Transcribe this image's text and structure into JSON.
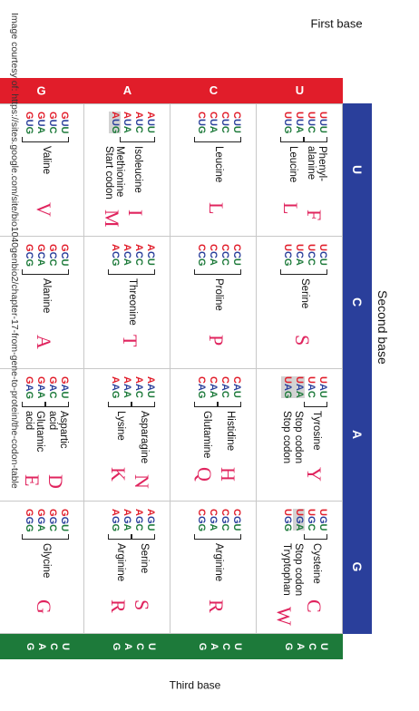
{
  "labels": {
    "first_base": "First base",
    "second_base": "Second base",
    "third_base": "Third base",
    "credit": "Image courtesy of: https://sites.google.com/site/bio1040genbio2/chapter-17-from-gene-to-protein/the-codon-table"
  },
  "second_base_letters": [
    "U",
    "C",
    "A",
    "G"
  ],
  "first_base_letters": [
    "U",
    "C",
    "A",
    "G"
  ],
  "third_base_letters": [
    "U",
    "C",
    "A",
    "G"
  ],
  "colors": {
    "first_base": "#e11d2a",
    "second_base": "#2a3f9b",
    "third_base": "#1d7a3a",
    "amino_letter": "#e0245e"
  },
  "cells": [
    [
      {
        "codons": [
          "UUU",
          "UUC",
          "UUA",
          "UUG"
        ],
        "groups": [
          {
            "name": "Phenyl-\nalanine",
            "rows": [
              0,
              1
            ],
            "letter": "F"
          },
          {
            "name": "Leucine",
            "rows": [
              2,
              3
            ],
            "letter": "L"
          }
        ]
      },
      {
        "codons": [
          "UCU",
          "UCC",
          "UCA",
          "UCG"
        ],
        "groups": [
          {
            "name": "Serine",
            "rows": [
              0,
              3
            ],
            "letter": "S"
          }
        ]
      },
      {
        "codons": [
          "UAU",
          "UAC",
          "UAA",
          "UAG"
        ],
        "highlight": [
          2,
          3
        ],
        "groups": [
          {
            "name": "Tyrosine",
            "rows": [
              0,
              1
            ],
            "letter": "Y"
          },
          {
            "name": "Stop codon",
            "rows": [
              2,
              2
            ],
            "letter": ""
          },
          {
            "name": "Stop codon",
            "rows": [
              3,
              3
            ],
            "letter": ""
          }
        ]
      },
      {
        "codons": [
          "UGU",
          "UGC",
          "UGA",
          "UGG"
        ],
        "highlight": [
          2
        ],
        "groups": [
          {
            "name": "Cysteine",
            "rows": [
              0,
              1
            ],
            "letter": "C"
          },
          {
            "name": "Stop codon",
            "rows": [
              2,
              2
            ],
            "letter": ""
          },
          {
            "name": "Tryptophan",
            "rows": [
              3,
              3
            ],
            "letter": "W"
          }
        ]
      }
    ],
    [
      {
        "codons": [
          "CUU",
          "CUC",
          "CUA",
          "CUG"
        ],
        "groups": [
          {
            "name": "Leucine",
            "rows": [
              0,
              3
            ],
            "letter": "L"
          }
        ]
      },
      {
        "codons": [
          "CCU",
          "CCC",
          "CCA",
          "CCG"
        ],
        "groups": [
          {
            "name": "Proline",
            "rows": [
              0,
              3
            ],
            "letter": "P"
          }
        ]
      },
      {
        "codons": [
          "CAU",
          "CAC",
          "CAA",
          "CAG"
        ],
        "groups": [
          {
            "name": "Histidine",
            "rows": [
              0,
              1
            ],
            "letter": "H"
          },
          {
            "name": "Glutamine",
            "rows": [
              2,
              3
            ],
            "letter": "Q"
          }
        ]
      },
      {
        "codons": [
          "CGU",
          "CGC",
          "CGA",
          "CGG"
        ],
        "groups": [
          {
            "name": "Arginine",
            "rows": [
              0,
              3
            ],
            "letter": "R"
          }
        ]
      }
    ],
    [
      {
        "codons": [
          "AUU",
          "AUC",
          "AUA",
          "AUG"
        ],
        "highlight": [
          3
        ],
        "groups": [
          {
            "name": "Isoleucine",
            "rows": [
              0,
              2
            ],
            "letter": "I"
          },
          {
            "name": "Methionine\nStart codon",
            "rows": [
              3,
              3
            ],
            "letter": "M"
          }
        ]
      },
      {
        "codons": [
          "ACU",
          "ACC",
          "ACA",
          "ACG"
        ],
        "groups": [
          {
            "name": "Threonine",
            "rows": [
              0,
              3
            ],
            "letter": "T"
          }
        ]
      },
      {
        "codons": [
          "AAU",
          "AAC",
          "AAA",
          "AAG"
        ],
        "groups": [
          {
            "name": "Asparagine",
            "rows": [
              0,
              1
            ],
            "letter": "N"
          },
          {
            "name": "Lysine",
            "rows": [
              2,
              3
            ],
            "letter": "K"
          }
        ]
      },
      {
        "codons": [
          "AGU",
          "AGC",
          "AGA",
          "AGG"
        ],
        "groups": [
          {
            "name": "Serine",
            "rows": [
              0,
              1
            ],
            "letter": "S"
          },
          {
            "name": "Arginine",
            "rows": [
              2,
              3
            ],
            "letter": "R"
          }
        ]
      }
    ],
    [
      {
        "codons": [
          "GUU",
          "GUC",
          "GUA",
          "GUG"
        ],
        "groups": [
          {
            "name": "Valine",
            "rows": [
              0,
              3
            ],
            "letter": "V"
          }
        ]
      },
      {
        "codons": [
          "GCU",
          "GCC",
          "GCA",
          "GCG"
        ],
        "groups": [
          {
            "name": "Alanine",
            "rows": [
              0,
              3
            ],
            "letter": "A"
          }
        ]
      },
      {
        "codons": [
          "GAU",
          "GAC",
          "GAA",
          "GAG"
        ],
        "groups": [
          {
            "name": "Aspartic\nacid",
            "rows": [
              0,
              1
            ],
            "letter": "D"
          },
          {
            "name": "Glutamic\nacid",
            "rows": [
              2,
              3
            ],
            "letter": "E"
          }
        ]
      },
      {
        "codons": [
          "GGU",
          "GGC",
          "GGA",
          "GGG"
        ],
        "groups": [
          {
            "name": "Glycine",
            "rows": [
              0,
              3
            ],
            "letter": "G"
          }
        ]
      }
    ]
  ]
}
